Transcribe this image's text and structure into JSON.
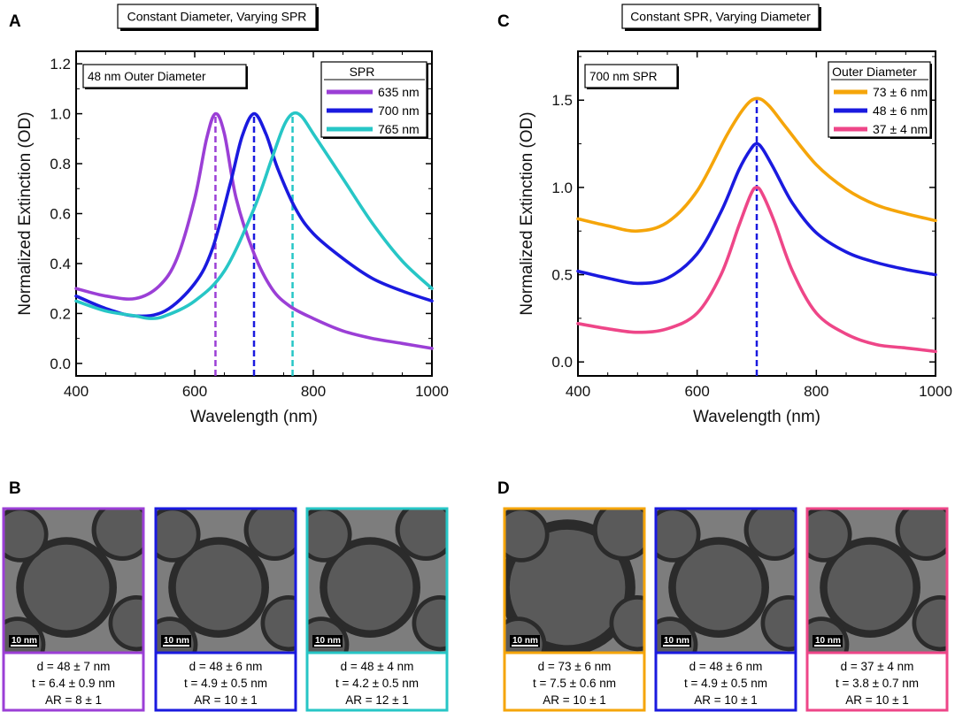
{
  "panels": {
    "A": "A",
    "B": "B",
    "C": "C",
    "D": "D"
  },
  "colors": {
    "purple": "#9b3fd6",
    "blue": "#1a1adf",
    "cyan": "#27c6c6",
    "orange": "#f5a50a",
    "pink": "#ee4688"
  },
  "chart_data": [
    {
      "type": "line",
      "panel": "A",
      "title": "Constant Diameter, Varying SPR",
      "annotation": "48 nm Outer Diameter",
      "xlabel": "Wavelength (nm)",
      "ylabel": "Normalized Extinction (OD)",
      "xlim": [
        400,
        1000
      ],
      "ylim": [
        -0.05,
        1.25
      ],
      "xticks": [
        "400",
        "600",
        "800",
        "1000"
      ],
      "yticks": [
        "0.0",
        "0.2",
        "0.4",
        "0.6",
        "0.8",
        "1.0",
        "1.2"
      ],
      "legend_title": "SPR",
      "legend_position": "top-right",
      "series": [
        {
          "name": "635 nm",
          "color": "#9b3fd6",
          "peak": 635,
          "x": [
            400,
            450,
            500,
            540,
            570,
            600,
            620,
            635,
            650,
            670,
            700,
            730,
            760,
            800,
            850,
            900,
            950,
            1000
          ],
          "y": [
            0.3,
            0.27,
            0.26,
            0.31,
            0.42,
            0.66,
            0.9,
            1.0,
            0.92,
            0.66,
            0.44,
            0.3,
            0.23,
            0.18,
            0.13,
            0.1,
            0.08,
            0.06
          ]
        },
        {
          "name": "700 nm",
          "color": "#1a1adf",
          "peak": 700,
          "x": [
            400,
            450,
            500,
            550,
            600,
            630,
            660,
            680,
            700,
            720,
            740,
            770,
            800,
            850,
            900,
            950,
            1000
          ],
          "y": [
            0.27,
            0.22,
            0.19,
            0.21,
            0.32,
            0.46,
            0.72,
            0.91,
            1.0,
            0.92,
            0.78,
            0.62,
            0.52,
            0.42,
            0.34,
            0.29,
            0.25
          ]
        },
        {
          "name": "765 nm",
          "color": "#27c6c6",
          "peak": 765,
          "x": [
            400,
            450,
            500,
            525,
            550,
            600,
            650,
            700,
            730,
            750,
            765,
            780,
            800,
            850,
            900,
            950,
            1000
          ],
          "y": [
            0.25,
            0.21,
            0.19,
            0.18,
            0.19,
            0.25,
            0.37,
            0.62,
            0.82,
            0.95,
            1.0,
            0.99,
            0.92,
            0.74,
            0.56,
            0.41,
            0.3
          ]
        }
      ]
    },
    {
      "type": "line",
      "panel": "C",
      "title": "Constant SPR, Varying Diameter",
      "annotation": "700 nm SPR",
      "xlabel": "Wavelength (nm)",
      "ylabel": "Normalized Extinction (OD)",
      "xlim": [
        400,
        1000
      ],
      "ylim": [
        -0.08,
        1.78
      ],
      "xticks": [
        "400",
        "600",
        "800",
        "1000"
      ],
      "yticks": [
        "0.0",
        "0.5",
        "1.0",
        "1.5"
      ],
      "legend_title": "Outer Diameter",
      "legend_position": "top-right",
      "peak_line": 700,
      "series": [
        {
          "name": "73 ± 6 nm",
          "color": "#f5a50a",
          "x": [
            400,
            450,
            500,
            550,
            600,
            650,
            680,
            700,
            720,
            750,
            800,
            850,
            900,
            950,
            1000
          ],
          "y": [
            0.82,
            0.78,
            0.75,
            0.8,
            0.98,
            1.3,
            1.46,
            1.51,
            1.47,
            1.34,
            1.13,
            0.99,
            0.9,
            0.85,
            0.81
          ]
        },
        {
          "name": "48 ± 6 nm",
          "color": "#1a1adf",
          "x": [
            400,
            450,
            500,
            550,
            600,
            640,
            670,
            690,
            700,
            710,
            730,
            760,
            800,
            850,
            900,
            950,
            1000
          ],
          "y": [
            0.52,
            0.48,
            0.45,
            0.48,
            0.62,
            0.86,
            1.1,
            1.22,
            1.25,
            1.22,
            1.1,
            0.91,
            0.74,
            0.63,
            0.57,
            0.53,
            0.5
          ]
        },
        {
          "name": "37 ± 4 nm",
          "color": "#ee4688",
          "x": [
            400,
            450,
            500,
            550,
            600,
            640,
            670,
            690,
            700,
            710,
            730,
            760,
            800,
            850,
            900,
            950,
            1000
          ],
          "y": [
            0.22,
            0.19,
            0.17,
            0.19,
            0.28,
            0.5,
            0.78,
            0.96,
            1.0,
            0.96,
            0.8,
            0.52,
            0.28,
            0.16,
            0.1,
            0.08,
            0.06
          ]
        }
      ]
    }
  ],
  "tem": {
    "B": [
      {
        "color": "#9b3fd6",
        "scale": "10 nm",
        "d": "d = 48 ± 7 nm",
        "t": "t = 6.4 ± 0.9 nm",
        "ar": "AR = 8 ± 1"
      },
      {
        "color": "#1a1adf",
        "scale": "10 nm",
        "d": "d = 48 ± 6 nm",
        "t": "t = 4.9 ± 0.5 nm",
        "ar": "AR = 10 ± 1"
      },
      {
        "color": "#27c6c6",
        "scale": "10 nm",
        "d": "d = 48 ± 4 nm",
        "t": "t = 4.2 ± 0.5 nm",
        "ar": "AR = 12 ± 1"
      }
    ],
    "D": [
      {
        "color": "#f5a50a",
        "scale": "10 nm",
        "d": "d = 73 ± 6 nm",
        "t": "t = 7.5 ± 0.6 nm",
        "ar": "AR = 10 ± 1"
      },
      {
        "color": "#1a1adf",
        "scale": "10 nm",
        "d": "d = 48 ± 6 nm",
        "t": "t = 4.9 ± 0.5 nm",
        "ar": "AR = 10 ± 1"
      },
      {
        "color": "#ee4688",
        "scale": "10 nm",
        "d": "d = 37 ± 4 nm",
        "t": "t = 3.8 ± 0.7 nm",
        "ar": "AR = 10 ± 1"
      }
    ]
  }
}
